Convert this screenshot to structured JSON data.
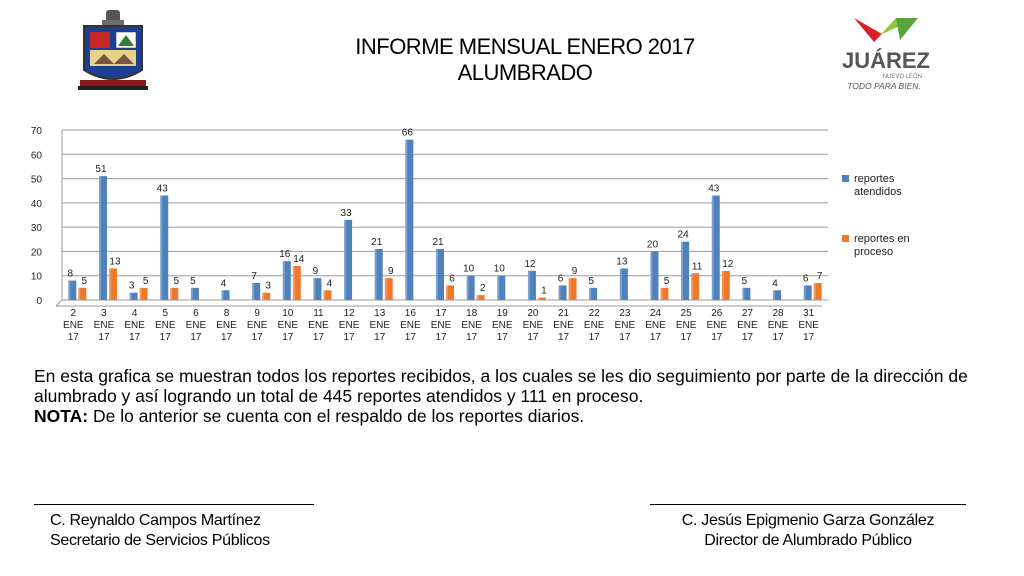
{
  "header": {
    "title_line1": "INFORME  MENSUAL ENERO 2017",
    "title_line2": "ALUMBRADO"
  },
  "logo": {
    "name": "JUÁREZ",
    "sub": "NUEVO LEÓN",
    "slogan": "TODO PARA BIEN."
  },
  "colors": {
    "atendidos": "#4f81bd",
    "proceso": "#f0782a",
    "accent_green": "#8dc63f",
    "accent_red": "#d92027"
  },
  "chart_data": {
    "type": "bar",
    "categories": [
      "2 ENE 17",
      "3 ENE 17",
      "4 ENE 17",
      "5 ENE 17",
      "6 ENE 17",
      "8 ENE 17",
      "9 ENE 17",
      "10 ENE 17",
      "11 ENE 17",
      "12 ENE 17",
      "13 ENE 17",
      "16 ENE 17",
      "17 ENE 17",
      "18 ENE 17",
      "19 ENE 17",
      "20 ENE 17",
      "21 ENE 17",
      "22 ENE 17",
      "23 ENE 17",
      "24 ENE 17",
      "25 ENE 17",
      "26 ENE 17",
      "27 ENE 17",
      "28 ENE 17",
      "31 ENE 17"
    ],
    "series": [
      {
        "name": "reportes atendidos",
        "values": [
          8,
          51,
          3,
          43,
          5,
          4,
          7,
          16,
          9,
          33,
          21,
          66,
          21,
          10,
          10,
          12,
          6,
          5,
          13,
          20,
          24,
          43,
          5,
          4,
          6
        ]
      },
      {
        "name": "reportes en proceso",
        "values": [
          5,
          13,
          5,
          5,
          null,
          null,
          3,
          14,
          4,
          null,
          9,
          null,
          6,
          2,
          null,
          1,
          9,
          null,
          null,
          5,
          11,
          12,
          null,
          null,
          7
        ]
      }
    ],
    "ylim": [
      0,
      70
    ],
    "yticks": [
      "0",
      "10",
      "20",
      "30",
      "40",
      "50",
      "60",
      "70"
    ],
    "legend": "right",
    "grid": true
  },
  "description": {
    "text": "En esta grafica se muestran todos los reportes recibidos, a los cuales se les dio seguimiento por parte de la dirección de alumbrado y así logrando un total de 445 reportes atendidos  y 111 en proceso.",
    "note_label": "NOTA:",
    "note_text": " De lo anterior se cuenta con el respaldo de los reportes diarios."
  },
  "signatures": {
    "left_name": "C. Reynaldo Campos Martínez",
    "left_role": "Secretario de Servicios Públicos",
    "right_name": "C. Jesús Epigmenio Garza González",
    "right_role": "Director de Alumbrado Público"
  }
}
